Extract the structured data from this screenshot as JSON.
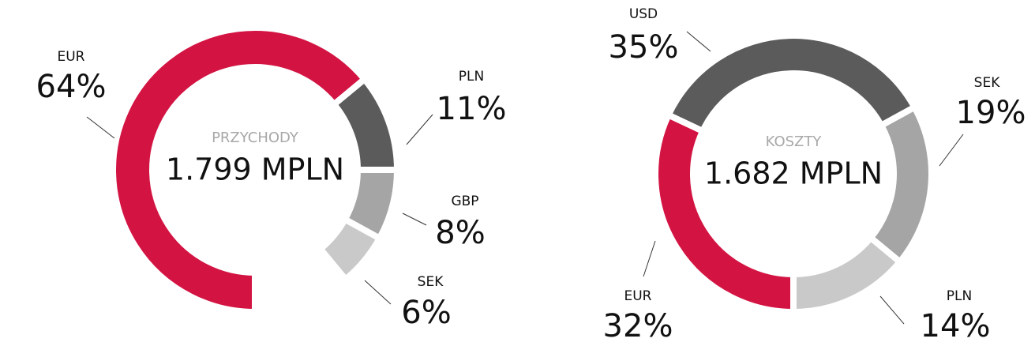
{
  "chart_data": [
    {
      "type": "pie",
      "title": "PRZYCHODY",
      "total_label": "1.799 MPLN",
      "categories": [
        "EUR",
        "PLN",
        "GBP",
        "SEK"
      ],
      "values": [
        64,
        11,
        8,
        6
      ],
      "value_labels": [
        "64%",
        "11%",
        "8%",
        "6%"
      ],
      "colors": [
        "#d31443",
        "#5b5b5b",
        "#a5a5a5",
        "#c9c9c9"
      ]
    },
    {
      "type": "pie",
      "title": "KOSZTY",
      "total_label": "1.682 MPLN",
      "categories": [
        "EUR",
        "USD",
        "SEK",
        "PLN"
      ],
      "values": [
        32,
        35,
        19,
        14
      ],
      "value_labels": [
        "32%",
        "35%",
        "19%",
        "14%"
      ],
      "colors": [
        "#d31443",
        "#5b5b5b",
        "#a5a5a5",
        "#c9c9c9"
      ]
    }
  ]
}
